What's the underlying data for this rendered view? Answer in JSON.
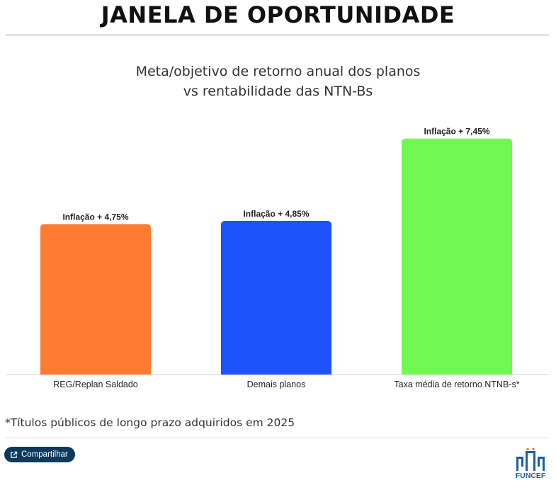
{
  "header": {
    "title": "JANELA DE OPORTUNIDADE"
  },
  "chart_data": {
    "type": "bar",
    "title_lines": [
      "Meta/objetivo de retorno anual dos planos",
      "vs rentabilidade das NTN-Bs"
    ],
    "categories": [
      "REG/Replan Saldado",
      "Demais planos",
      "Taxa média de retorno NTNB-s*"
    ],
    "values": [
      4.75,
      4.85,
      7.45
    ],
    "data_labels": [
      "Inflação + 4,75%",
      "Inflação + 4,85%",
      "Inflação + 7,45%"
    ],
    "colors": [
      "#fd7b32",
      "#1e52fb",
      "#72f853"
    ],
    "ylim": [
      0,
      7.6
    ],
    "grid": false,
    "legend": "none"
  },
  "footnote": "*Títulos públicos de longo prazo adquiridos em 2025",
  "share": {
    "label": "Compartilhar",
    "icon": "share-icon"
  },
  "logo": {
    "text": "FUNCEF",
    "color": "#1a5da8"
  }
}
